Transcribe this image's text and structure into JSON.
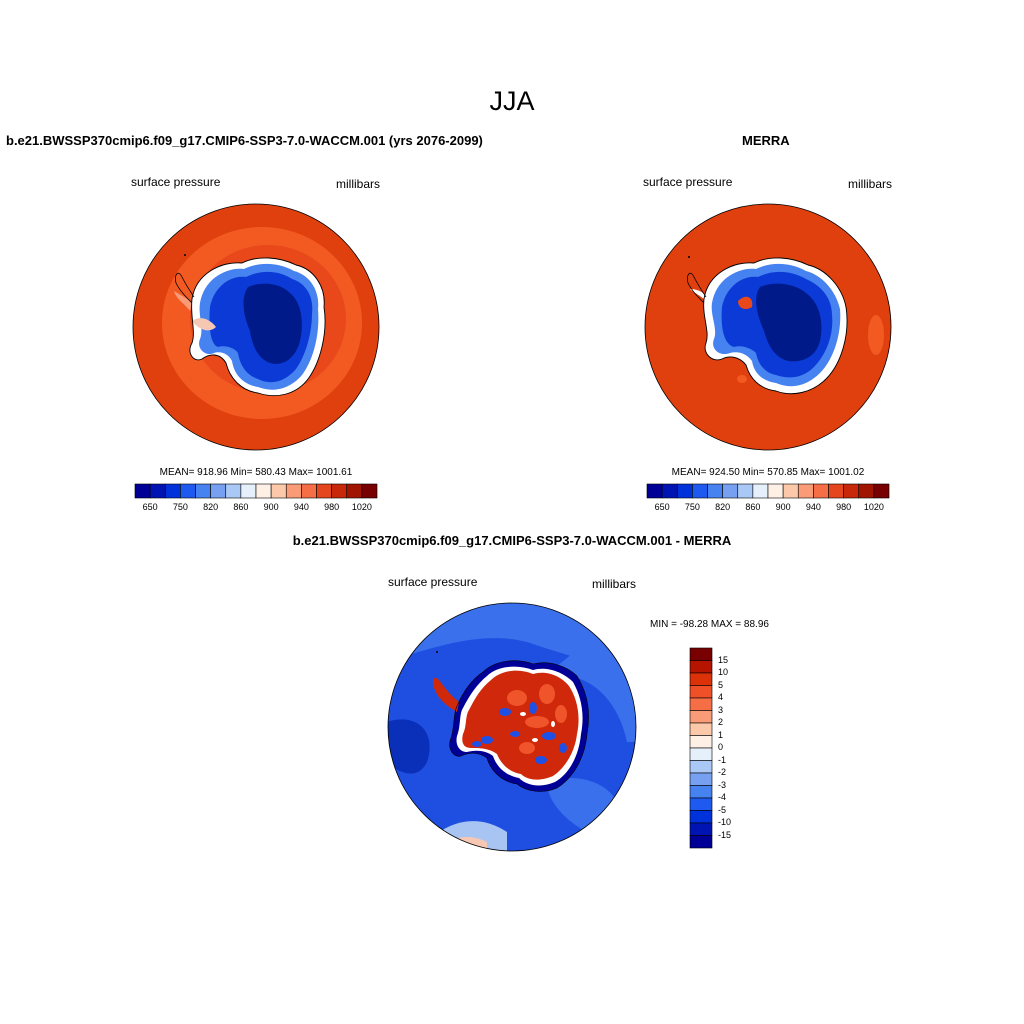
{
  "season": "JJA",
  "panel_left": {
    "title": "b.e21.BWSSP370cmip6.f09_g17.CMIP6-SSP3-7.0-WACCM.001 (yrs 2076-2099)",
    "variable": "surface pressure",
    "units": "millibars",
    "stats": "MEAN= 918.96  Min= 580.43  Max= 1001.61"
  },
  "panel_right": {
    "title": "MERRA",
    "variable": "surface pressure",
    "units": "millibars",
    "stats": "MEAN= 924.50  Min= 570.85  Max= 1001.02"
  },
  "panel_diff": {
    "title": "b.e21.BWSSP370cmip6.f09_g17.CMIP6-SSP3-7.0-WACCM.001 - MERRA",
    "variable": "surface pressure",
    "units": "millibars",
    "stats": "MIN = -98.28 MAX =  88.96"
  },
  "abs_colorbar": {
    "colors": [
      "#000096",
      "#0014b4",
      "#0032dc",
      "#1e5af0",
      "#4682f0",
      "#78a0f0",
      "#aac8f5",
      "#e6f0fa",
      "#fff0e6",
      "#fcc8aa",
      "#fa9b78",
      "#f56e46",
      "#e6461e",
      "#c8280a",
      "#a01400",
      "#780000"
    ],
    "tick_labels": [
      "650",
      "750",
      "820",
      "860",
      "900",
      "940",
      "980",
      "1020"
    ],
    "tick_after_box": [
      1,
      3,
      5,
      7,
      9,
      11,
      13,
      15
    ]
  },
  "diff_colorbar": {
    "colors_top_to_bottom": [
      "#780000",
      "#b41400",
      "#dc320a",
      "#f05028",
      "#f56e46",
      "#fa9b78",
      "#fcc8aa",
      "#fff0e6",
      "#e6f0fa",
      "#aac8f5",
      "#78a0f0",
      "#4682f0",
      "#1e5af0",
      "#0032dc",
      "#0014b4",
      "#000096"
    ],
    "tick_labels": [
      "15",
      "10",
      "5",
      "4",
      "3",
      "2",
      "1",
      "0",
      "-1",
      "-2",
      "-3",
      "-4",
      "-5",
      "-10",
      "-15"
    ]
  },
  "map_colors": {
    "ocean_abs": "#e0400e",
    "ocean_abs_ring": "#f25a22",
    "ocean_diff": "#1f4fe0",
    "ocean_diff_light": "#3a70ec",
    "ocean_diff_dark": "#0a2fb8",
    "ice_outer": "#0b3ad6",
    "ice_inner": "#001a8a",
    "coast_white": "#ffffff",
    "diff_land": "#d0280a",
    "diff_land_hot": "#f0542a",
    "diff_land_cold": "#1e50e6",
    "pink": "#f6c8b4",
    "light_blue": "#a8c4f2"
  }
}
